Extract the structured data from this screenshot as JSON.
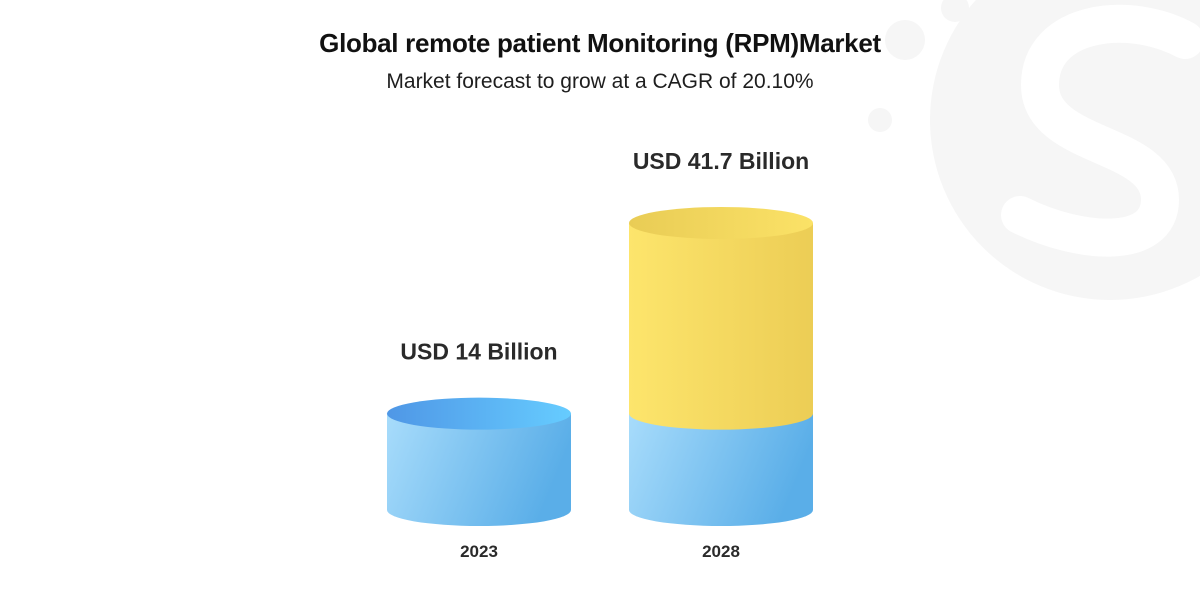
{
  "title": "Global remote patient Monitoring (RPM)Market",
  "subtitle": "Market forecast to grow at a CAGR of 20.10%",
  "colors": {
    "blue_light": "#a8dcfb",
    "blue_dark": "#5aaee8",
    "blue_top": "#4f97e6",
    "blue_top_light": "#66ccff",
    "yellow_light": "#fde56c",
    "yellow_dark": "#eccd55",
    "yellow_top": "#e9cc55",
    "watermark": "#f6f6f6"
  },
  "chart_data": {
    "type": "bar",
    "categories": [
      "2023",
      "2028"
    ],
    "values": [
      14,
      41.7
    ],
    "data_labels": [
      "USD 14 Billion",
      "USD 41.7  Billion"
    ],
    "units": "USD Billion",
    "stacked_base_on_2028": 14
  }
}
